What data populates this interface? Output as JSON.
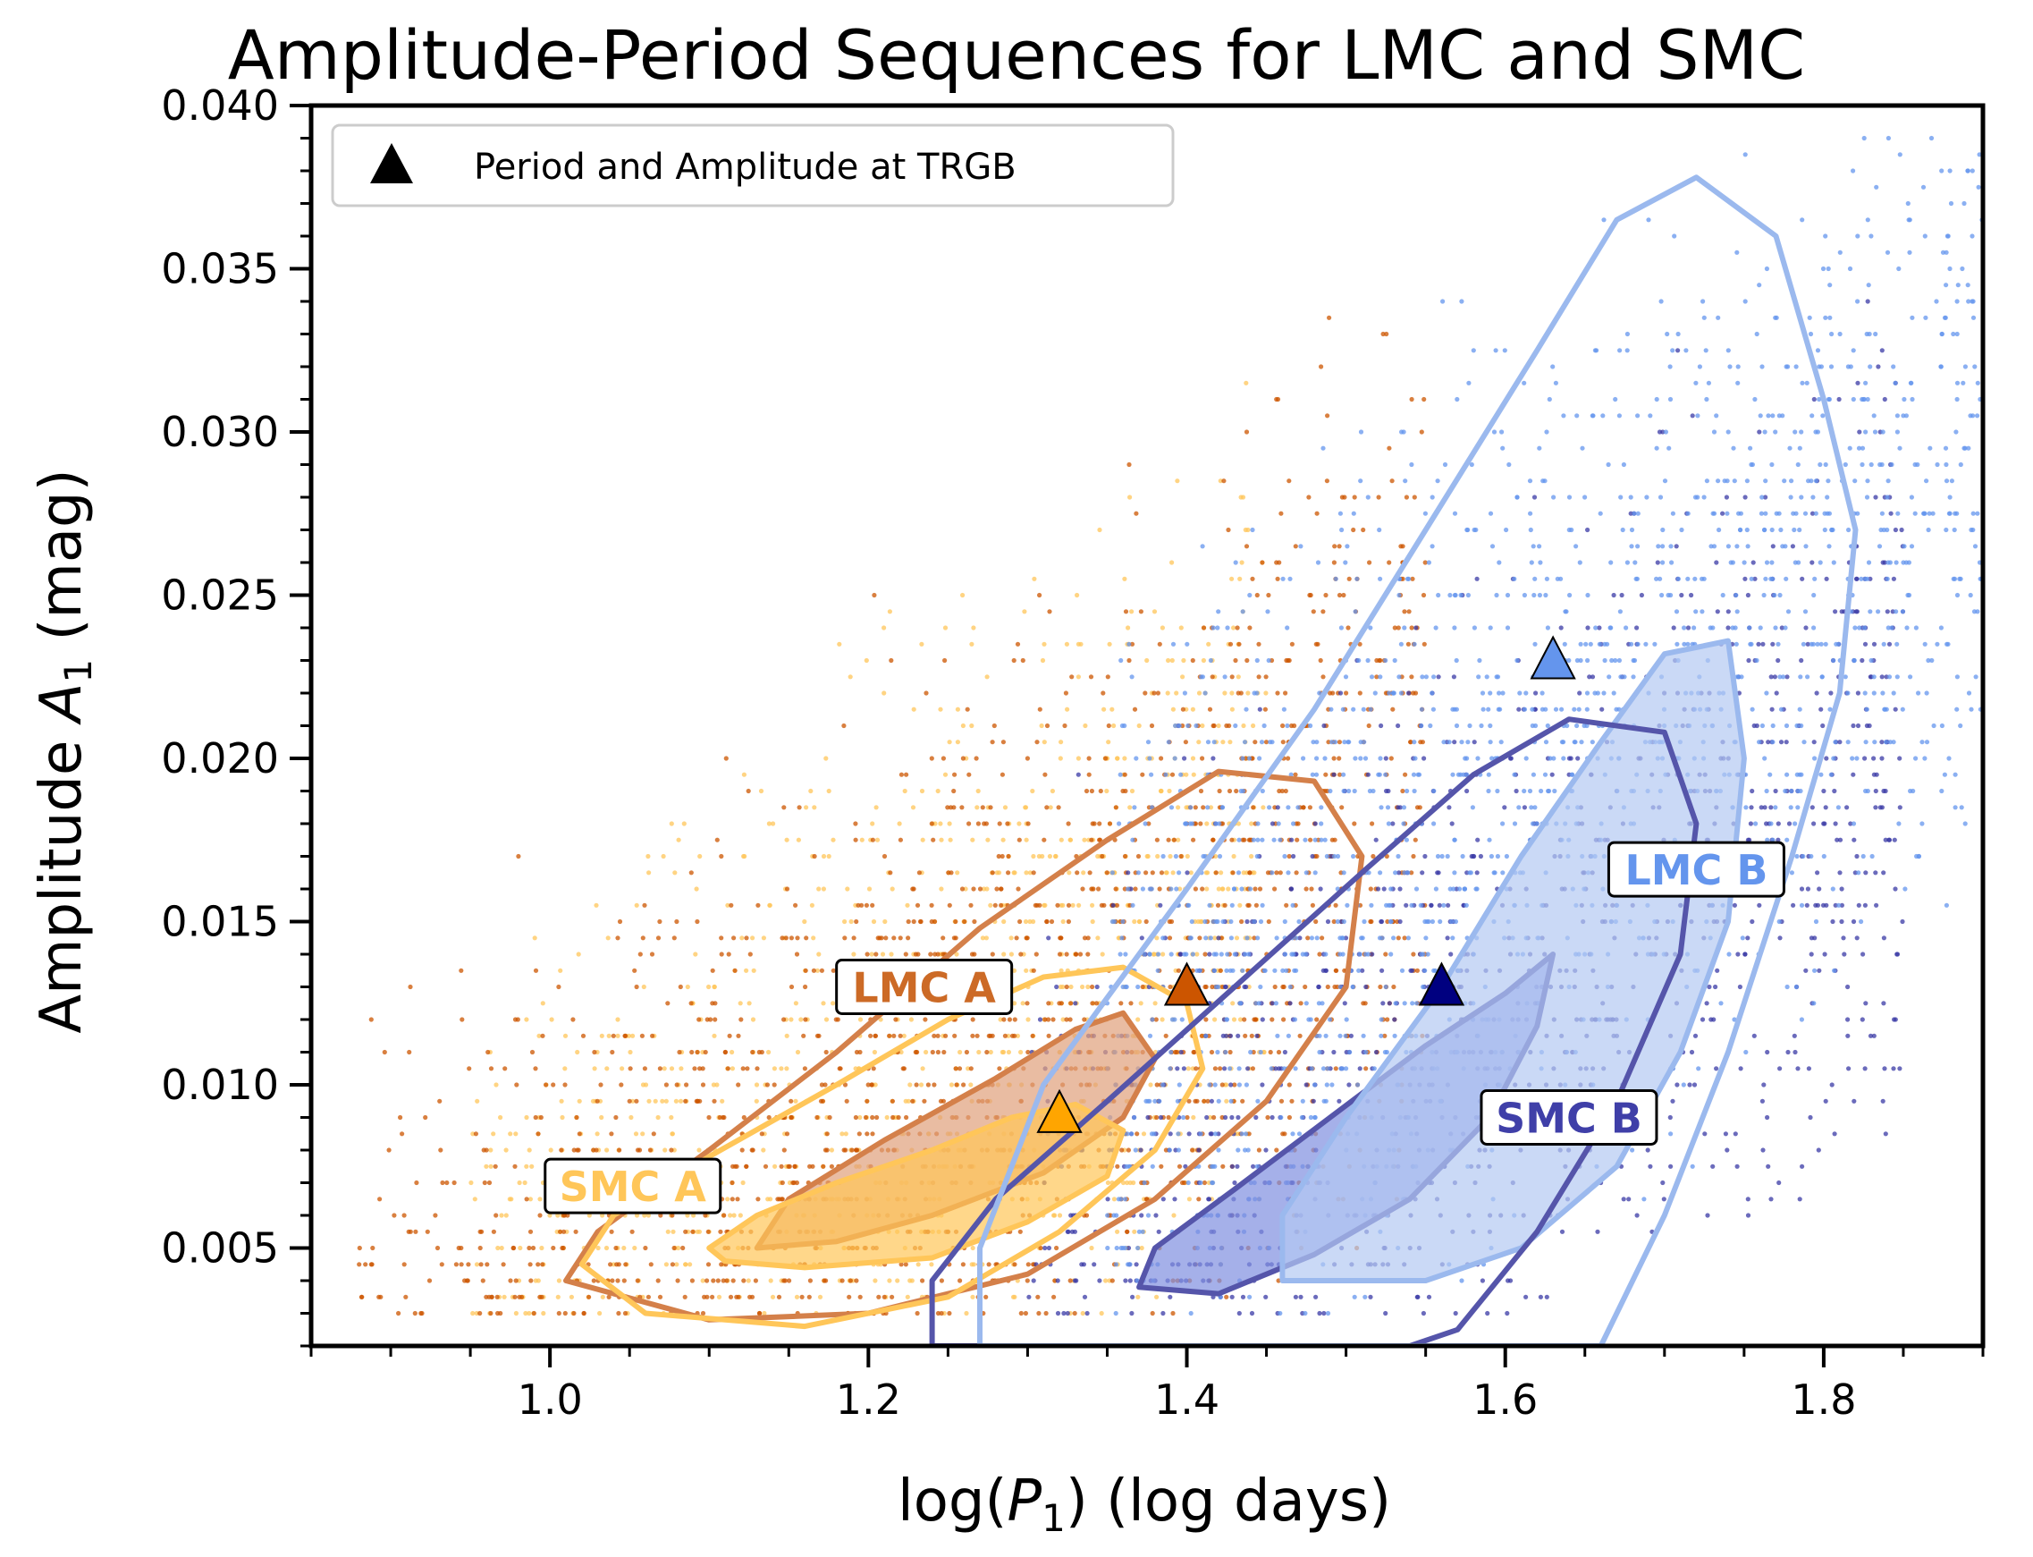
{
  "chart_data": {
    "type": "scatter",
    "title": "Amplitude-Period Sequences for LMC and SMC",
    "xlabel_parts": {
      "pre": "log(",
      "var": "P",
      "sub": "1",
      "post": ") (log days)"
    },
    "ylabel_parts": {
      "pre": "Amplitude ",
      "var": "A",
      "sub": "1",
      "post": " (mag)"
    },
    "xlim": [
      0.85,
      1.9
    ],
    "ylim": [
      0.002,
      0.04
    ],
    "x_ticks": [
      1.0,
      1.2,
      1.4,
      1.6,
      1.8
    ],
    "x_tick_labels": [
      "1.0",
      "1.2",
      "1.4",
      "1.6",
      "1.8"
    ],
    "y_ticks": [
      0.005,
      0.01,
      0.015,
      0.02,
      0.025,
      0.03,
      0.035,
      0.04
    ],
    "y_tick_labels": [
      "0.005",
      "0.010",
      "0.015",
      "0.020",
      "0.025",
      "0.030",
      "0.035",
      "0.040"
    ],
    "legend": {
      "label": "Period and Amplitude at TRGB",
      "marker": "triangle",
      "color": "#000000",
      "placement": "upper-left"
    },
    "colors": {
      "lmc_a": "#cc5500",
      "lmc_a_contour": "#d4804a",
      "smc_a": "#ffc659",
      "lmc_b": "#6495ed",
      "lmc_b_contour": "#9bb9ee",
      "smc_b": "#3a3aa6",
      "smc_b_contour": "#5555aa"
    },
    "sequences": [
      {
        "name": "SMC A",
        "label": "SMC A",
        "text_color": "#ffc659",
        "label_anchor": [
          1.052,
          0.0069
        ],
        "trgb": [
          1.32,
          0.0091
        ],
        "trgb_color": "#ffa500",
        "fill_color": "#ffc659",
        "points_range": {
          "x": [
            0.95,
            1.45
          ],
          "y_peak": [
            1.18,
            0.0078
          ],
          "density": 50
        },
        "inner_contour": [
          [
            1.1,
            0.005
          ],
          [
            1.13,
            0.006
          ],
          [
            1.18,
            0.007
          ],
          [
            1.24,
            0.008
          ],
          [
            1.29,
            0.009
          ],
          [
            1.33,
            0.0094
          ],
          [
            1.36,
            0.0086
          ],
          [
            1.35,
            0.0072
          ],
          [
            1.3,
            0.0058
          ],
          [
            1.24,
            0.0047
          ],
          [
            1.16,
            0.0044
          ],
          [
            1.11,
            0.0046
          ]
        ],
        "outer_contour": [
          [
            1.02,
            0.0045
          ],
          [
            1.04,
            0.006
          ],
          [
            1.1,
            0.0078
          ],
          [
            1.18,
            0.01
          ],
          [
            1.25,
            0.012
          ],
          [
            1.31,
            0.0133
          ],
          [
            1.36,
            0.0136
          ],
          [
            1.4,
            0.0125
          ],
          [
            1.41,
            0.0105
          ],
          [
            1.38,
            0.008
          ],
          [
            1.32,
            0.0055
          ],
          [
            1.25,
            0.0035
          ],
          [
            1.16,
            0.0026
          ],
          [
            1.06,
            0.003
          ]
        ]
      },
      {
        "name": "LMC A",
        "label": "LMC A",
        "text_color": "#cc6a26",
        "label_anchor": [
          1.235,
          0.013
        ],
        "trgb": [
          1.4,
          0.013
        ],
        "trgb_color": "#cc5500",
        "fill_color": "#e0a07a",
        "points_range": {
          "x": [
            0.88,
            1.55
          ],
          "y_peak": [
            1.26,
            0.0095
          ],
          "density": 80
        },
        "inner_contour": [
          [
            1.13,
            0.005
          ],
          [
            1.15,
            0.0065
          ],
          [
            1.21,
            0.0083
          ],
          [
            1.28,
            0.0102
          ],
          [
            1.33,
            0.0117
          ],
          [
            1.36,
            0.0122
          ],
          [
            1.38,
            0.0108
          ],
          [
            1.36,
            0.009
          ],
          [
            1.31,
            0.0073
          ],
          [
            1.24,
            0.006
          ],
          [
            1.18,
            0.0052
          ]
        ],
        "outer_contour": [
          [
            1.01,
            0.004
          ],
          [
            1.03,
            0.0055
          ],
          [
            1.1,
            0.008
          ],
          [
            1.18,
            0.011
          ],
          [
            1.27,
            0.0148
          ],
          [
            1.35,
            0.0175
          ],
          [
            1.42,
            0.0196
          ],
          [
            1.48,
            0.0193
          ],
          [
            1.51,
            0.017
          ],
          [
            1.5,
            0.013
          ],
          [
            1.45,
            0.0095
          ],
          [
            1.38,
            0.0065
          ],
          [
            1.3,
            0.0042
          ],
          [
            1.2,
            0.003
          ],
          [
            1.1,
            0.0028
          ]
        ]
      },
      {
        "name": "SMC B",
        "label": "SMC B",
        "text_color": "#3f3fa8",
        "label_anchor": [
          1.64,
          0.009
        ],
        "trgb": [
          1.56,
          0.013
        ],
        "trgb_color": "#000080",
        "fill_color": "#7f8ee0",
        "points_range": {
          "x": [
            1.3,
            1.85
          ],
          "y_peak": [
            1.5,
            0.009
          ],
          "density": 45
        },
        "inner_contour": [
          [
            1.37,
            0.0038
          ],
          [
            1.38,
            0.005
          ],
          [
            1.43,
            0.0068
          ],
          [
            1.49,
            0.009
          ],
          [
            1.55,
            0.0112
          ],
          [
            1.6,
            0.0128
          ],
          [
            1.63,
            0.014
          ],
          [
            1.62,
            0.0118
          ],
          [
            1.59,
            0.009
          ],
          [
            1.54,
            0.0065
          ],
          [
            1.48,
            0.0048
          ],
          [
            1.42,
            0.0036
          ]
        ],
        "outer_contour": [
          [
            1.24,
            0.002
          ],
          [
            1.24,
            0.004
          ],
          [
            1.28,
            0.0065
          ],
          [
            1.35,
            0.0095
          ],
          [
            1.43,
            0.013
          ],
          [
            1.51,
            0.0165
          ],
          [
            1.58,
            0.0195
          ],
          [
            1.64,
            0.0212
          ],
          [
            1.7,
            0.0208
          ],
          [
            1.72,
            0.018
          ],
          [
            1.71,
            0.014
          ],
          [
            1.67,
            0.0095
          ],
          [
            1.62,
            0.0055
          ],
          [
            1.57,
            0.0025
          ],
          [
            1.54,
            0.002
          ]
        ]
      },
      {
        "name": "LMC B",
        "label": "LMC B",
        "text_color": "#6495ed",
        "label_anchor": [
          1.72,
          0.0166
        ],
        "trgb": [
          1.63,
          0.023
        ],
        "trgb_color": "#6495ed",
        "fill_color": "#b3c9f2",
        "points_range": {
          "x": [
            1.35,
            1.9
          ],
          "y_peak": [
            1.62,
            0.02
          ],
          "density": 60
        },
        "inner_contour": [
          [
            1.46,
            0.004
          ],
          [
            1.46,
            0.006
          ],
          [
            1.5,
            0.009
          ],
          [
            1.56,
            0.013
          ],
          [
            1.61,
            0.017
          ],
          [
            1.66,
            0.0205
          ],
          [
            1.7,
            0.0232
          ],
          [
            1.74,
            0.0236
          ],
          [
            1.75,
            0.02
          ],
          [
            1.74,
            0.015
          ],
          [
            1.71,
            0.011
          ],
          [
            1.67,
            0.0075
          ],
          [
            1.61,
            0.005
          ],
          [
            1.55,
            0.004
          ]
        ],
        "outer_contour": [
          [
            1.27,
            0.002
          ],
          [
            1.27,
            0.005
          ],
          [
            1.31,
            0.01
          ],
          [
            1.4,
            0.016
          ],
          [
            1.48,
            0.0215
          ],
          [
            1.55,
            0.027
          ],
          [
            1.62,
            0.0325
          ],
          [
            1.67,
            0.0365
          ],
          [
            1.72,
            0.0378
          ],
          [
            1.77,
            0.036
          ],
          [
            1.8,
            0.031
          ],
          [
            1.82,
            0.027
          ],
          [
            1.81,
            0.022
          ],
          [
            1.78,
            0.017
          ],
          [
            1.74,
            0.011
          ],
          [
            1.7,
            0.006
          ],
          [
            1.66,
            0.002
          ]
        ]
      }
    ]
  }
}
